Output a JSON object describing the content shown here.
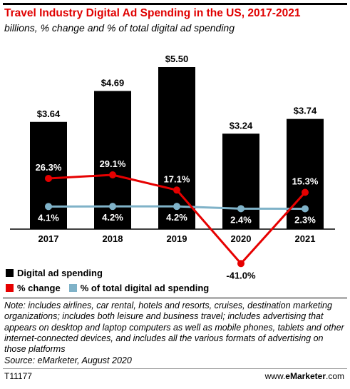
{
  "header": {
    "title": "Travel Industry Digital Ad Spending in the US, 2017-2021",
    "subtitle": "billions, % change and % of total digital ad spending"
  },
  "chart_data": {
    "type": "bar",
    "categories": [
      "2017",
      "2018",
      "2019",
      "2020",
      "2021"
    ],
    "series": [
      {
        "name": "Digital ad spending",
        "type": "bar",
        "color": "#000000",
        "values": [
          3.64,
          4.69,
          5.5,
          3.24,
          3.74
        ],
        "labels": [
          "$3.64",
          "$4.69",
          "$5.50",
          "$3.24",
          "$3.74"
        ]
      },
      {
        "name": "% change",
        "type": "line",
        "color": "#e60000",
        "values": [
          26.3,
          29.1,
          17.1,
          -41.0,
          15.3
        ],
        "labels": [
          "26.3%",
          "29.1%",
          "17.1%",
          "-41.0%",
          "15.3%"
        ]
      },
      {
        "name": "% of total digital ad spending",
        "type": "line",
        "color": "#7fb2c8",
        "values": [
          4.1,
          4.2,
          4.2,
          2.4,
          2.3
        ],
        "labels": [
          "4.1%",
          "4.2%",
          "4.2%",
          "2.4%",
          "2.3%"
        ]
      }
    ]
  },
  "legend": {
    "bar_label": "Digital ad spending",
    "change_label": "% change",
    "share_label": "% of total digital ad spending"
  },
  "note": {
    "text": "Note: includes airlines, car rental, hotels and resorts, cruises, destination marketing organizations; includes both leisure and business travel; includes advertising that appears on desktop and laptop computers as well as mobile phones, tablets and other internet-connected devices, and includes all the various formats of advertising on those platforms",
    "source": "Source: eMarketer, August 2020"
  },
  "footer": {
    "code": "T11177",
    "site_prefix": "www.",
    "site_brand": "eMarketer",
    "site_suffix": ".com"
  }
}
